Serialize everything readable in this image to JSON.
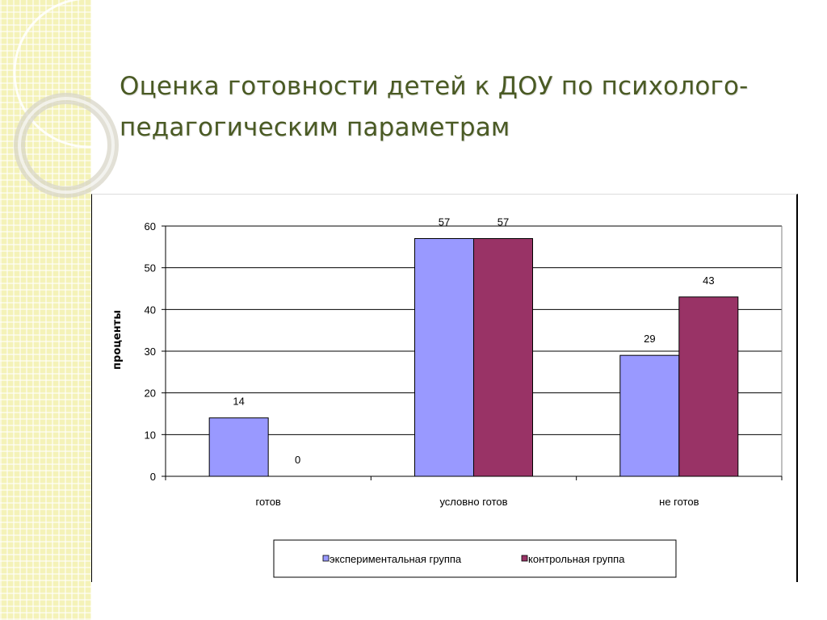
{
  "slide": {
    "title": "Оценка готовности детей к ДОУ по психолого-педагогическим параметрам"
  },
  "colors": {
    "strip": "#f4f2b8",
    "title": "#4a5a24",
    "series_1": "#9999ff",
    "series_2": "#993366"
  },
  "chart_data": {
    "type": "bar",
    "title": "",
    "xlabel": "",
    "ylabel": "проценты",
    "ylim": [
      0,
      60
    ],
    "yticks": [
      0,
      10,
      20,
      30,
      40,
      50,
      60
    ],
    "grid": true,
    "legend_position": "bottom",
    "categories": [
      "готов",
      "условно готов",
      "не готов"
    ],
    "series": [
      {
        "name": "экспериментальная группа",
        "values": [
          14,
          57,
          29
        ],
        "color": "#9999ff"
      },
      {
        "name": "контрольная группа",
        "values": [
          0,
          57,
          43
        ],
        "color": "#993366"
      }
    ]
  }
}
